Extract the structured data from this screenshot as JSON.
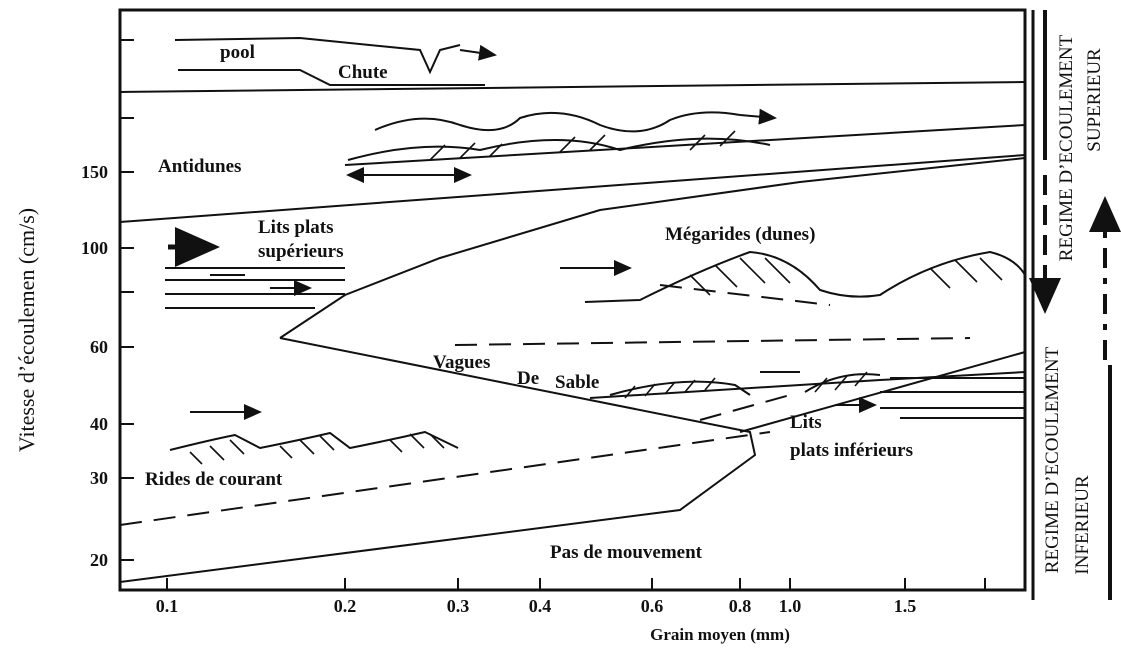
{
  "diagram": {
    "y_axis_label": "Vitesse d’écoulemen (cm/s)",
    "x_axis_label": "Grain moyen (mm)",
    "y_tick_labels": [
      "150",
      "100",
      "60",
      "40",
      "30",
      "20"
    ],
    "x_tick_labels": [
      "0.1",
      "0.2",
      "0.3",
      "0.4",
      "0.6",
      "0.8",
      "1.0",
      "1.5"
    ],
    "regions": {
      "pool": "pool",
      "chute": "Chute",
      "antidunes": "Antidunes",
      "upper_flat_beds": [
        "Lits plats",
        "supérieurs"
      ],
      "megaripples": "Mégarides (dunes)",
      "sand_waves": [
        "Vagues",
        "De",
        "Sable"
      ],
      "lower_flat_beds": [
        "Lits",
        "plats inférieurs"
      ],
      "ripples": "Rides de courant",
      "no_movement": "Pas de mouvement"
    },
    "upper_regime": [
      "REGIME D’ECOULEMENT",
      "SUPERIEUR"
    ],
    "lower_regime": [
      "REGIME D’ECOULEMENT",
      "INFERIEUR"
    ]
  }
}
